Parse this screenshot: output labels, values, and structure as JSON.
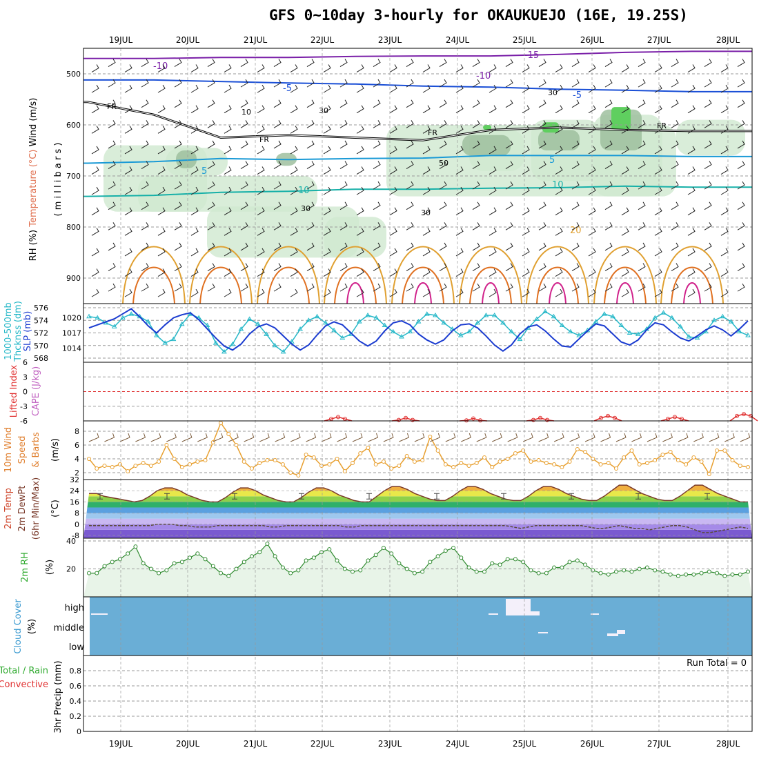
{
  "title": "GFS 0~10day 3-hourly for OKAUKUEJO (16E, 19.25S)",
  "dates": [
    "19JUL",
    "20JUL",
    "21JUL",
    "22JUL",
    "23JUL",
    "24JUL",
    "25JUL",
    "26JUL",
    "27JUL",
    "28JUL"
  ],
  "colors": {
    "temp_cold": "#7a1fa8",
    "temp_mid": "#1a4fd6",
    "temp_cool": "#1a9ad6",
    "temp_teal": "#16b0a8",
    "temp_warm": "#e0a030",
    "temp_hot": "#e07020",
    "temp_very_hot": "#d0208a",
    "rh_fill": "#cfe8cf",
    "thick": "#26b8c8",
    "slp": "#1a3bd0",
    "wind": "#e8a030",
    "cloud": "#6aaed6",
    "rh2m": "#2f8a2f",
    "li": "#e03030"
  },
  "panels": {
    "upper": {
      "ylabel_parts": [
        "RH (%)",
        "Temperature (°C)",
        "Wind (m/s)"
      ],
      "ylabel_unit": "( m i l l i b a r s )",
      "contour_labels": {
        "t_m10": "-10",
        "t_m15": "-15",
        "t_m5": "-5",
        "t_5": "5",
        "t_10": "10",
        "t_20": "20",
        "fr": "FR",
        "rh10": "10",
        "rh30": "30",
        "rh50": "50"
      }
    },
    "thickness": {
      "ylabel_a": "1000-500mb",
      "ylabel_b": "Thcknss (dm)",
      "ylabel_c": "SLP (mb)"
    },
    "cape": {
      "ylabel_a": "Lifted Index",
      "ylabel_b": "CAPE (J/kg)"
    },
    "wind10": {
      "ylabel_a": "10m Wind",
      "ylabel_b": "Speed",
      "ylabel_c": "& Barbs",
      "ylabel_d": "(m/s)"
    },
    "temp2m": {
      "ylabel_a": "2m Temp",
      "ylabel_b": "2m DewPt",
      "ylabel_c": "(6hr Min/Max)",
      "ylabel_d": "(°C)"
    },
    "rh2m": {
      "ylabel_a": "2m RH",
      "ylabel_b": "(%)"
    },
    "cloud": {
      "ylabel_a": "Cloud Cover",
      "ylabel_b": "(%)",
      "levels": [
        "high",
        "middle",
        "low"
      ]
    },
    "precip": {
      "ylabel_a": "Total / Rain",
      "ylabel_b": "Convective",
      "ylabel_c": "3hr Precip (mm)",
      "run_total": "Run Total = 0"
    }
  },
  "chart_data": [
    {
      "type": "area",
      "name": "upper-air cross section",
      "yaxis": "pressure (mb)",
      "yticks": [
        500,
        600,
        700,
        800,
        900
      ],
      "ylim": [
        450,
        950
      ],
      "x": [
        "19JUL",
        "20JUL",
        "21JUL",
        "22JUL",
        "23JUL",
        "24JUL",
        "25JUL",
        "26JUL",
        "27JUL",
        "28JUL"
      ],
      "contours": [
        {
          "label": "-10",
          "level_mb": [
            470,
            470,
            468,
            468,
            466,
            465,
            465,
            462,
            458,
            456
          ]
        },
        {
          "label": "-5",
          "level_mb": [
            512,
            512,
            515,
            518,
            520,
            524,
            526,
            530,
            532,
            535
          ]
        },
        {
          "label": "FR",
          "level_mb": [
            555,
            580,
            625,
            620,
            625,
            630,
            610,
            605,
            610,
            612
          ]
        },
        {
          "label": "5",
          "level_mb": [
            675,
            672,
            666,
            668,
            666,
            665,
            660,
            660,
            660,
            662
          ]
        },
        {
          "label": "10",
          "level_mb": [
            740,
            738,
            732,
            730,
            726,
            726,
            724,
            723,
            720,
            722
          ]
        }
      ]
    },
    {
      "type": "line",
      "name": "thickness and slp",
      "yticks_thickness": [
        568,
        570,
        572,
        574,
        576
      ],
      "yticks_slp": [
        1014,
        1017,
        1020
      ],
      "series": [
        {
          "name": "Thcknss (dm)",
          "values": [
            574.6,
            574.4,
            573.6,
            573.0,
            574.4,
            575.0,
            574.6,
            573.8,
            571.6,
            570.4,
            571.0,
            573.4,
            575.0,
            574.4,
            573.2,
            570.4,
            569.0,
            570.2,
            572.6,
            574.2,
            573.4,
            571.8,
            570.0,
            569.0,
            570.6,
            572.6,
            574.0,
            574.6,
            573.6,
            572.4,
            571.2,
            571.8,
            573.8,
            574.8,
            574.4,
            573.2,
            572.2,
            571.4,
            572.2,
            573.8,
            575.0,
            574.8,
            573.6,
            572.6,
            571.6,
            572.2,
            573.6,
            574.8,
            574.8,
            573.6,
            572.2,
            571.0,
            572.8,
            574.2,
            575.4,
            574.6,
            573.2,
            572.2,
            571.6,
            572.4,
            573.8,
            575.0,
            574.6,
            573.2,
            572.0,
            571.8,
            572.6,
            574.4,
            575.2,
            574.4,
            573.0,
            571.4,
            571.2,
            572.2,
            574.0,
            574.6,
            573.8,
            572.2,
            571.6
          ]
        },
        {
          "name": "SLP (mb)",
          "values": [
            1018.0,
            1018.6,
            1019.2,
            1019.8,
            1020.8,
            1021.8,
            1020.2,
            1018.4,
            1017.0,
            1018.6,
            1020.0,
            1020.6,
            1021.0,
            1019.6,
            1017.8,
            1016.0,
            1014.4,
            1013.6,
            1014.8,
            1016.8,
            1018.2,
            1018.8,
            1018.0,
            1016.4,
            1014.8,
            1013.6,
            1014.6,
            1016.6,
            1018.4,
            1019.2,
            1018.6,
            1017.0,
            1015.4,
            1014.4,
            1015.4,
            1017.4,
            1019.0,
            1019.4,
            1018.6,
            1016.8,
            1015.6,
            1014.8,
            1015.6,
            1017.4,
            1018.6,
            1018.8,
            1018.0,
            1016.4,
            1014.6,
            1013.4,
            1014.6,
            1016.8,
            1018.2,
            1018.6,
            1017.4,
            1015.8,
            1014.4,
            1014.2,
            1015.8,
            1017.4,
            1018.8,
            1018.4,
            1016.8,
            1015.2,
            1014.6,
            1015.6,
            1017.6,
            1019.0,
            1018.6,
            1017.2,
            1016.0,
            1015.4,
            1016.4,
            1017.6,
            1018.4,
            1017.6,
            1016.4,
            1017.8,
            1019.4
          ]
        }
      ]
    },
    {
      "type": "line",
      "name": "lifted index / cape",
      "yticks": [
        6,
        3,
        0,
        -3,
        -6
      ],
      "li_axis": [
        -6,
        6
      ],
      "series": [
        {
          "name": "Lifted Index",
          "segments": [
            {
              "day": "22JUL",
              "peak": 5.2
            },
            {
              "day": "23JUL",
              "peak": 5.4
            },
            {
              "day": "24JUL",
              "peak": 5.5
            },
            {
              "day": "25JUL",
              "peak": 5.4
            },
            {
              "day": "26JUL",
              "peak": 5.0
            },
            {
              "day": "27JUL",
              "peak": 5.2
            },
            {
              "day": "28JUL",
              "peak": 4.6
            }
          ]
        }
      ]
    },
    {
      "type": "line",
      "name": "10m wind",
      "yticks": [
        2,
        4,
        6,
        8
      ],
      "ylim": [
        1,
        9.5
      ],
      "series": [
        {
          "name": "Speed (m/s)",
          "values": [
            4.0,
            2.6,
            3.0,
            2.8,
            3.2,
            2.2,
            3.0,
            3.4,
            3.0,
            3.6,
            6.0,
            4.0,
            2.8,
            3.2,
            3.6,
            3.8,
            6.4,
            9.2,
            7.6,
            6.0,
            3.6,
            2.6,
            3.4,
            3.8,
            3.8,
            3.2,
            2.0,
            1.6,
            4.6,
            4.2,
            3.0,
            3.2,
            4.0,
            2.2,
            3.4,
            4.8,
            5.6,
            3.2,
            3.6,
            2.6,
            3.0,
            4.4,
            3.6,
            3.8,
            7.2,
            5.2,
            3.2,
            2.8,
            3.4,
            3.0,
            3.4,
            4.2,
            2.8,
            3.6,
            4.0,
            4.8,
            5.2,
            3.6,
            3.8,
            3.4,
            3.2,
            2.8,
            3.6,
            5.4,
            5.0,
            4.0,
            3.2,
            3.4,
            2.6,
            4.2,
            5.2,
            3.2,
            3.4,
            3.8,
            4.6,
            5.0,
            3.8,
            3.2,
            4.2,
            3.6,
            1.8,
            5.2,
            5.2,
            3.8,
            3.0,
            2.8
          ]
        }
      ]
    },
    {
      "type": "area",
      "name": "2m temp",
      "yticks": [
        32,
        24,
        16,
        8,
        0,
        -8
      ],
      "ylim": [
        -10,
        32
      ],
      "series": [
        {
          "name": "2m Temp",
          "values": [
            22,
            22,
            20,
            19,
            18,
            17,
            16,
            17,
            20,
            24,
            26,
            26,
            24,
            21,
            19,
            17,
            16,
            16,
            19,
            23,
            26,
            26,
            24,
            21,
            19,
            17,
            16,
            16,
            19,
            23,
            26,
            26,
            24,
            21,
            19,
            17,
            16,
            16,
            20,
            24,
            27,
            27,
            25,
            22,
            20,
            18,
            17,
            17,
            20,
            24,
            27,
            27,
            25,
            22,
            20,
            18,
            17,
            17,
            20,
            24,
            27,
            27,
            25,
            22,
            20,
            18,
            17,
            17,
            20,
            24,
            28,
            28,
            25,
            22,
            20,
            18,
            17,
            17,
            20,
            24,
            28,
            28,
            25,
            22,
            20,
            18,
            16,
            16
          ]
        },
        {
          "name": "2m DewPt",
          "values": [
            -1,
            -1,
            -1,
            -1,
            -1,
            -1,
            -1,
            -1,
            -1,
            0,
            0,
            0,
            -1,
            -1,
            -2,
            -2,
            -2,
            -1,
            -1,
            -1,
            -1,
            -1,
            -1,
            -1,
            -2,
            -2,
            -1,
            -1,
            -1,
            -1,
            -1,
            -1,
            -1,
            -1,
            -2,
            -2,
            -1,
            -1,
            -1,
            -1,
            -1,
            -1,
            -1,
            -1,
            -1,
            -1,
            -1,
            -1,
            -1,
            -1,
            -1,
            -1,
            -1,
            -1,
            -1,
            -1,
            -2,
            -3,
            -2,
            -1,
            -1,
            -1,
            -1,
            -1,
            -1,
            -1,
            -2,
            -3,
            -3,
            -2,
            -1,
            -2,
            -3,
            -3,
            -4,
            -3,
            -2,
            -1,
            -1,
            -2,
            -4,
            -6,
            -6,
            -5,
            -4,
            -3,
            -2,
            -3
          ]
        }
      ]
    },
    {
      "type": "area",
      "name": "2m RH",
      "yticks": [
        20,
        40
      ],
      "ylim": [
        0,
        40
      ],
      "series": [
        {
          "name": "2m RH (%)",
          "values": [
            17,
            17,
            22,
            25,
            27,
            31,
            36,
            24,
            20,
            17,
            19,
            24,
            25,
            28,
            31,
            27,
            22,
            17,
            15,
            20,
            25,
            29,
            32,
            38,
            29,
            21,
            17,
            19,
            26,
            28,
            32,
            34,
            26,
            20,
            18,
            19,
            26,
            30,
            35,
            31,
            24,
            20,
            17,
            18,
            25,
            29,
            33,
            35,
            28,
            21,
            18,
            18,
            24,
            23,
            27,
            27,
            25,
            19,
            17,
            17,
            21,
            21,
            25,
            26,
            23,
            19,
            17,
            16,
            18,
            19,
            18,
            20,
            21,
            19,
            18,
            16,
            15,
            16,
            16,
            17,
            18,
            17,
            15,
            16,
            16,
            18
          ]
        }
      ]
    },
    {
      "type": "bar",
      "name": "cloud cover",
      "levels": [
        "high",
        "middle",
        "low"
      ],
      "note_points": [
        {
          "day": "19JUL",
          "level": "high",
          "value": 5
        },
        {
          "day": "24JUL",
          "level": "high",
          "value": 10
        },
        {
          "day": "25JUL",
          "level": "high",
          "value": 40
        },
        {
          "day": "26JUL",
          "level": "high",
          "value": 5
        },
        {
          "day": "25JUL",
          "level": "middle",
          "value": 5
        },
        {
          "day": "26JUL",
          "level": "middle",
          "value": 10
        }
      ]
    },
    {
      "type": "bar",
      "name": "precip",
      "yticks": [
        0,
        0.2,
        0.4,
        0.6,
        0.8
      ],
      "ylim": [
        0,
        1.0
      ],
      "values": []
    }
  ]
}
